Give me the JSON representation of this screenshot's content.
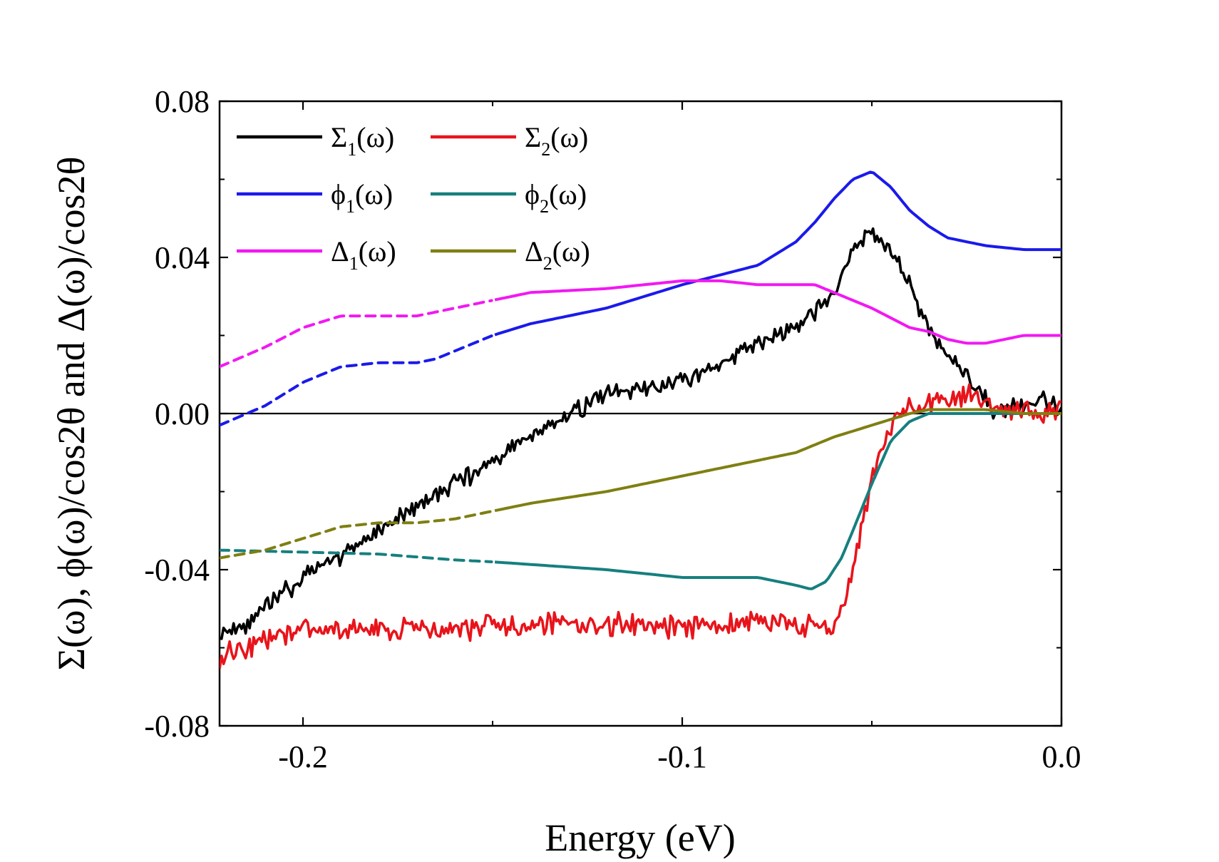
{
  "chart_data": {
    "type": "line",
    "title": "",
    "xlabel": "Energy (eV)",
    "ylabel": "Σ(ω), ϕ(ω)/cos2θ and Δ(ω)/cos2θ",
    "xlim": [
      -0.222,
      0.0
    ],
    "ylim": [
      -0.08,
      0.08
    ],
    "x_ticks": [
      -0.2,
      -0.1,
      0.0
    ],
    "x_tick_labels": [
      "-0.2",
      "-0.1",
      "0.0"
    ],
    "y_ticks": [
      -0.08,
      -0.04,
      0.0,
      0.04,
      0.08
    ],
    "y_tick_labels": [
      "-0.08",
      "-0.04",
      "0.00",
      "0.04",
      "0.08"
    ],
    "zero_line": 0.0,
    "legend": {
      "placement": "top-left",
      "entries": [
        {
          "series": "sigma1",
          "base": "Σ",
          "sub": "1",
          "arg": "(ω)"
        },
        {
          "series": "sigma2",
          "base": "Σ",
          "sub": "2",
          "arg": "(ω)"
        },
        {
          "series": "phi1",
          "base": "ϕ",
          "sub": "1",
          "arg": "(ω)"
        },
        {
          "series": "phi2",
          "base": "ϕ",
          "sub": "2",
          "arg": "(ω)"
        },
        {
          "series": "delta1",
          "base": "Δ",
          "sub": "1",
          "arg": "(ω)"
        },
        {
          "series": "delta2",
          "base": "Δ",
          "sub": "2",
          "arg": "(ω)"
        }
      ]
    },
    "series": [
      {
        "id": "sigma1",
        "name": "Σ1(ω)",
        "color": "#000000",
        "noise": 0.0018,
        "seed": 11,
        "dashed_below": null,
        "x": [
          -0.222,
          -0.215,
          -0.2,
          -0.18,
          -0.16,
          -0.14,
          -0.13,
          -0.12,
          -0.1,
          -0.08,
          -0.07,
          -0.06,
          -0.056,
          -0.053,
          -0.05,
          -0.045,
          -0.04,
          -0.035,
          -0.03,
          -0.025,
          -0.02,
          -0.018,
          -0.015,
          -0.01,
          -0.005,
          0.0
        ],
        "values": [
          -0.056,
          -0.054,
          -0.042,
          -0.03,
          -0.018,
          -0.006,
          0.0,
          0.005,
          0.008,
          0.018,
          0.022,
          0.03,
          0.04,
          0.044,
          0.047,
          0.042,
          0.033,
          0.022,
          0.015,
          0.01,
          0.004,
          0.0,
          0.001,
          0.002,
          0.003,
          0.001
        ]
      },
      {
        "id": "sigma2",
        "name": "Σ2(ω)",
        "color": "#e8141b",
        "noise": 0.0022,
        "seed": 23,
        "dashed_below": null,
        "x": [
          -0.222,
          -0.21,
          -0.2,
          -0.18,
          -0.16,
          -0.14,
          -0.12,
          -0.1,
          -0.08,
          -0.07,
          -0.065,
          -0.06,
          -0.057,
          -0.055,
          -0.05,
          -0.045,
          -0.04,
          -0.035,
          -0.03,
          -0.025,
          -0.02,
          -0.015,
          -0.01,
          -0.005,
          0.0
        ],
        "values": [
          -0.062,
          -0.058,
          -0.055,
          -0.056,
          -0.055,
          -0.054,
          -0.054,
          -0.055,
          -0.053,
          -0.054,
          -0.055,
          -0.054,
          -0.048,
          -0.04,
          -0.018,
          -0.003,
          0.002,
          0.003,
          0.004,
          0.005,
          0.003,
          0.0,
          0.001,
          0.0,
          0.001
        ]
      },
      {
        "id": "phi1",
        "name": "ϕ1(ω)",
        "color": "#1a1aeb",
        "noise": 0,
        "seed": 0,
        "dashed_below": -0.15,
        "x": [
          -0.222,
          -0.21,
          -0.2,
          -0.19,
          -0.18,
          -0.17,
          -0.165,
          -0.16,
          -0.15,
          -0.14,
          -0.12,
          -0.1,
          -0.08,
          -0.07,
          -0.065,
          -0.06,
          -0.055,
          -0.05,
          -0.045,
          -0.04,
          -0.035,
          -0.03,
          -0.02,
          -0.01,
          0.0
        ],
        "values": [
          -0.003,
          0.002,
          0.008,
          0.012,
          0.013,
          0.013,
          0.014,
          0.016,
          0.02,
          0.023,
          0.027,
          0.033,
          0.038,
          0.044,
          0.049,
          0.055,
          0.06,
          0.062,
          0.058,
          0.052,
          0.048,
          0.045,
          0.043,
          0.042,
          0.042
        ]
      },
      {
        "id": "phi2",
        "name": "ϕ2(ω)",
        "color": "#167f7f",
        "noise": 0,
        "seed": 0,
        "dashed_below": -0.15,
        "x": [
          -0.222,
          -0.2,
          -0.18,
          -0.16,
          -0.15,
          -0.12,
          -0.1,
          -0.09,
          -0.08,
          -0.075,
          -0.07,
          -0.066,
          -0.062,
          -0.058,
          -0.055,
          -0.05,
          -0.045,
          -0.04,
          -0.035,
          -0.03,
          -0.02,
          -0.01,
          0.0
        ],
        "values": [
          -0.035,
          -0.0355,
          -0.036,
          -0.0375,
          -0.038,
          -0.04,
          -0.042,
          -0.042,
          -0.042,
          -0.043,
          -0.044,
          -0.045,
          -0.043,
          -0.037,
          -0.03,
          -0.018,
          -0.007,
          -0.002,
          0.0,
          0.0,
          0.0,
          0.0,
          0.0
        ]
      },
      {
        "id": "delta1",
        "name": "Δ1(ω)",
        "color": "#f218f2",
        "noise": 0,
        "seed": 0,
        "dashed_below": -0.15,
        "x": [
          -0.222,
          -0.21,
          -0.2,
          -0.19,
          -0.18,
          -0.17,
          -0.16,
          -0.15,
          -0.14,
          -0.12,
          -0.1,
          -0.09,
          -0.08,
          -0.07,
          -0.065,
          -0.06,
          -0.05,
          -0.04,
          -0.035,
          -0.03,
          -0.025,
          -0.02,
          -0.015,
          -0.01,
          -0.005,
          0.0
        ],
        "values": [
          0.012,
          0.017,
          0.022,
          0.025,
          0.025,
          0.025,
          0.027,
          0.029,
          0.031,
          0.032,
          0.034,
          0.034,
          0.033,
          0.033,
          0.033,
          0.031,
          0.027,
          0.022,
          0.021,
          0.019,
          0.018,
          0.018,
          0.019,
          0.02,
          0.02,
          0.02
        ]
      },
      {
        "id": "delta2",
        "name": "Δ2(ω)",
        "color": "#7f7f12",
        "noise": 0,
        "seed": 0,
        "dashed_below": -0.15,
        "x": [
          -0.222,
          -0.21,
          -0.2,
          -0.19,
          -0.18,
          -0.17,
          -0.16,
          -0.15,
          -0.14,
          -0.12,
          -0.1,
          -0.08,
          -0.07,
          -0.06,
          -0.05,
          -0.04,
          -0.035,
          -0.03,
          -0.02,
          -0.01,
          0.0
        ],
        "values": [
          -0.037,
          -0.035,
          -0.032,
          -0.029,
          -0.028,
          -0.028,
          -0.027,
          -0.025,
          -0.023,
          -0.02,
          -0.016,
          -0.012,
          -0.01,
          -0.006,
          -0.003,
          0.0,
          0.001,
          0.001,
          0.001,
          0.0,
          0.0
        ]
      }
    ]
  }
}
